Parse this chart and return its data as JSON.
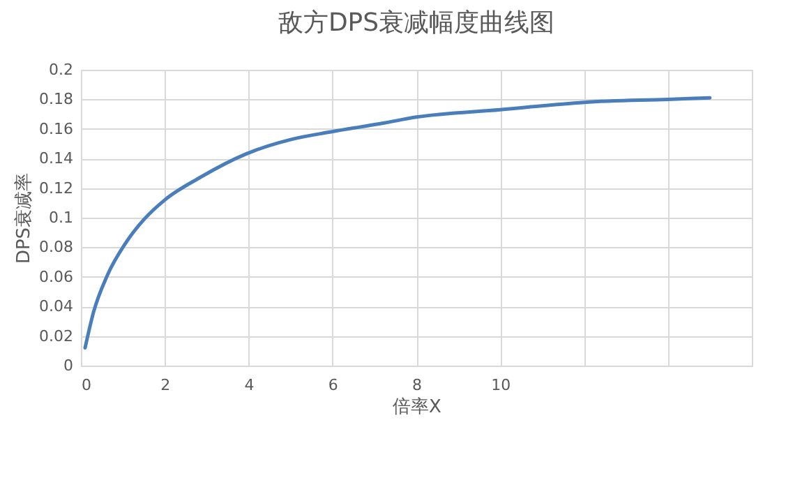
{
  "chart_data": {
    "type": "line",
    "title": "敌方DPS衰减幅度曲线图",
    "xlabel": "倍率X",
    "ylabel": "DPS衰减率",
    "x": [
      0.1,
      0.3,
      0.63,
      1.07,
      1.51,
      2,
      2.83,
      3.93,
      5.03,
      5.96,
      7.23,
      8,
      10,
      12,
      14,
      15
    ],
    "series": [
      {
        "color": "#4a7ebb",
        "values": [
          0.012,
          0.036,
          0.061,
          0.083,
          0.099,
          0.112,
          0.127,
          0.143,
          0.153,
          0.158,
          0.164,
          0.168,
          0.173,
          0.178,
          0.18,
          0.181
        ]
      }
    ],
    "xlim": [
      0,
      16
    ],
    "xticks": [
      0,
      2,
      4,
      6,
      8,
      10,
      {
        "value": 12,
        "label": null
      },
      {
        "value": 14,
        "label": null
      },
      {
        "value": 16,
        "label": null
      }
    ],
    "ylim": [
      0,
      0.2
    ],
    "yticks": [
      0,
      0.02,
      0.04,
      0.06,
      0.08,
      0.1,
      0.12,
      0.14,
      0.16,
      0.18,
      0.2
    ],
    "grid": true,
    "line_style": "solid",
    "marker": "none"
  }
}
